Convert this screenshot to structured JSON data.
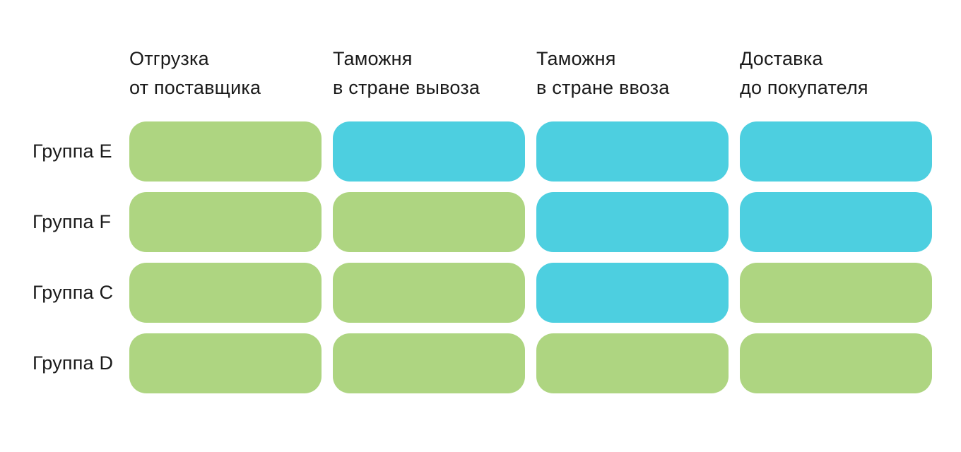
{
  "colors": {
    "green": "#aed581",
    "blue": "#4dcfe0",
    "text": "#1a1a1a",
    "background": "#ffffff"
  },
  "matrix": {
    "columns": [
      {
        "label": "Отгрузка\nот поставщика"
      },
      {
        "label": "Таможня\nв стране вывоза"
      },
      {
        "label": "Таможня\nв стране ввоза"
      },
      {
        "label": "Доставка\nдо покупателя"
      }
    ],
    "rows": [
      {
        "label": "Группа E",
        "cells": [
          "green",
          "blue",
          "blue",
          "blue"
        ]
      },
      {
        "label": "Группа F",
        "cells": [
          "green",
          "green",
          "blue",
          "blue"
        ]
      },
      {
        "label": "Группа C",
        "cells": [
          "green",
          "green",
          "blue",
          "green"
        ]
      },
      {
        "label": "Группа D",
        "cells": [
          "green",
          "green",
          "green",
          "green"
        ]
      }
    ]
  }
}
